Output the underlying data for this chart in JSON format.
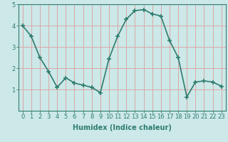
{
  "xlabel": "Humidex (Indice chaleur)",
  "ylabel": "",
  "x": [
    0,
    1,
    2,
    3,
    4,
    5,
    6,
    7,
    8,
    9,
    10,
    11,
    12,
    13,
    14,
    15,
    16,
    17,
    18,
    19,
    20,
    21,
    22,
    23
  ],
  "y": [
    4.0,
    3.5,
    2.5,
    1.85,
    1.1,
    1.55,
    1.3,
    1.2,
    1.1,
    0.85,
    2.45,
    3.5,
    4.3,
    4.7,
    4.75,
    4.55,
    4.45,
    3.3,
    2.5,
    0.65,
    1.35,
    1.4,
    1.35,
    1.15
  ],
  "line_color": "#2e7d6e",
  "marker": "+",
  "marker_size": 4,
  "marker_lw": 1.2,
  "bg_color": "#cce8e8",
  "grid_color": "#dba8a8",
  "ylim": [
    0,
    5
  ],
  "xlim": [
    -0.5,
    23.5
  ],
  "yticks": [
    1,
    2,
    3,
    4,
    5
  ],
  "xticks": [
    0,
    1,
    2,
    3,
    4,
    5,
    6,
    7,
    8,
    9,
    10,
    11,
    12,
    13,
    14,
    15,
    16,
    17,
    18,
    19,
    20,
    21,
    22,
    23
  ],
  "xlabel_fontsize": 7,
  "tick_fontsize": 6,
  "line_width": 1.2
}
